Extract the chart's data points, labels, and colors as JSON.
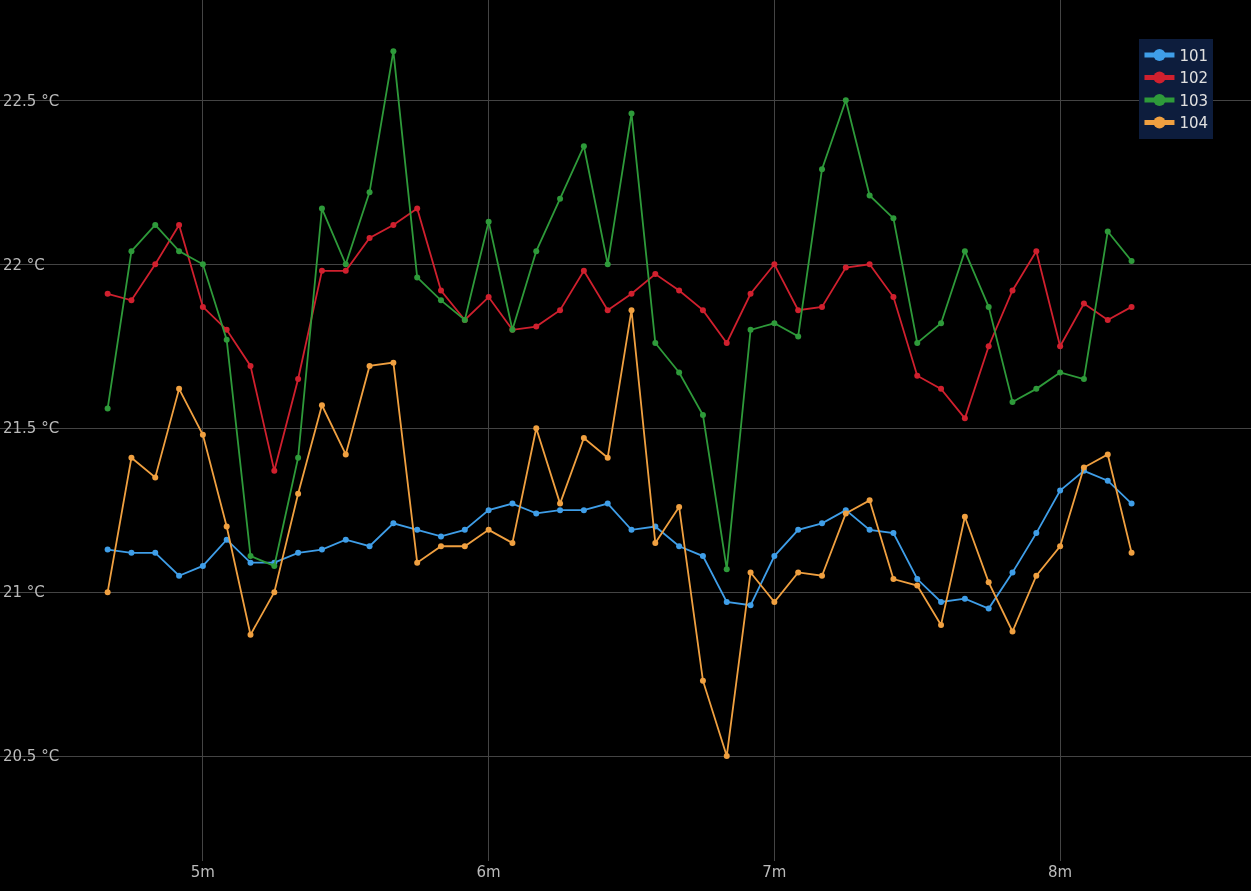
{
  "chart_data": {
    "type": "line",
    "x": [
      4.6667,
      4.75,
      4.8333,
      4.9167,
      5,
      5.0833,
      5.1667,
      5.25,
      5.3333,
      5.4167,
      5.5,
      5.5833,
      5.6667,
      5.75,
      5.8333,
      5.9167,
      6,
      6.0833,
      6.1667,
      6.25,
      6.3333,
      6.4167,
      6.5,
      6.5833,
      6.6667,
      6.75,
      6.8333,
      6.9167,
      7,
      7.0833,
      7.1667,
      7.25,
      7.3333,
      7.4167,
      7.5,
      7.5833,
      7.6667,
      7.75,
      7.8333,
      7.9167,
      8,
      8.0833,
      8.1667,
      8.25
    ],
    "series": [
      {
        "name": "101",
        "color": "#3f9ee8",
        "values": [
          21.13,
          21.12,
          21.12,
          21.05,
          21.08,
          21.16,
          21.09,
          21.09,
          21.12,
          21.13,
          21.16,
          21.14,
          21.21,
          21.19,
          21.17,
          21.19,
          21.25,
          21.27,
          21.24,
          21.25,
          21.25,
          21.27,
          21.19,
          21.2,
          21.14,
          21.11,
          20.97,
          20.96,
          21.11,
          21.19,
          21.21,
          21.25,
          21.19,
          21.18,
          21.04,
          20.97,
          20.98,
          20.95,
          21.06,
          21.18,
          21.31,
          21.37,
          21.34,
          21.27
        ]
      },
      {
        "name": "102",
        "color": "#d0202e",
        "values": [
          21.91,
          21.89,
          22.0,
          22.12,
          21.87,
          21.8,
          21.69,
          21.37,
          21.65,
          21.98,
          21.98,
          22.08,
          22.12,
          22.17,
          21.92,
          21.83,
          21.9,
          21.8,
          21.81,
          21.86,
          21.98,
          21.86,
          21.91,
          21.97,
          21.92,
          21.86,
          21.76,
          21.91,
          22.0,
          21.86,
          21.87,
          21.99,
          22.0,
          21.9,
          21.66,
          21.62,
          21.53,
          21.75,
          21.92,
          22.04,
          21.75,
          21.88,
          21.83,
          21.87
        ]
      },
      {
        "name": "103",
        "color": "#2e9a3a",
        "values": [
          21.56,
          22.04,
          22.12,
          22.04,
          22.0,
          21.77,
          21.11,
          21.08,
          21.41,
          22.17,
          22.0,
          22.22,
          22.65,
          21.96,
          21.89,
          21.83,
          22.13,
          21.8,
          22.04,
          22.2,
          22.36,
          22.0,
          22.46,
          21.76,
          21.67,
          21.54,
          21.07,
          21.8,
          21.82,
          21.78,
          22.29,
          22.5,
          22.21,
          22.14,
          21.76,
          21.82,
          22.04,
          21.87,
          21.58,
          21.62,
          21.67,
          21.65,
          22.1,
          22.01
        ]
      },
      {
        "name": "104",
        "color": "#f0a040",
        "values": [
          21.0,
          21.41,
          21.35,
          21.62,
          21.48,
          21.2,
          20.87,
          21.0,
          21.3,
          21.57,
          21.42,
          21.69,
          21.7,
          21.09,
          21.14,
          21.14,
          21.19,
          21.15,
          21.5,
          21.27,
          21.47,
          21.41,
          21.86,
          21.15,
          21.26,
          20.73,
          20.5,
          21.06,
          20.97,
          21.06,
          21.05,
          21.24,
          21.28,
          21.04,
          21.02,
          20.9,
          21.23,
          21.03,
          20.88,
          21.05,
          21.14,
          21.38,
          21.42,
          21.12
        ]
      }
    ],
    "xlim": [
      4.29,
      8.668
    ],
    "ylim": [
      20.18,
      22.806
    ],
    "xticks": [
      {
        "value": 5,
        "label": "5m"
      },
      {
        "value": 6,
        "label": "6m"
      },
      {
        "value": 7,
        "label": "7m"
      },
      {
        "value": 8,
        "label": "8m"
      }
    ],
    "yticks": [
      {
        "value": 20.5,
        "label": "20.5 °C"
      },
      {
        "value": 21,
        "label": "21 °C"
      },
      {
        "value": 21.5,
        "label": "21.5 °C"
      },
      {
        "value": 22,
        "label": "22 °C"
      },
      {
        "value": 22.5,
        "label": "22.5 °C"
      }
    ],
    "grid": true,
    "legend": "top right",
    "marker": "circle",
    "line_style": "solid"
  }
}
